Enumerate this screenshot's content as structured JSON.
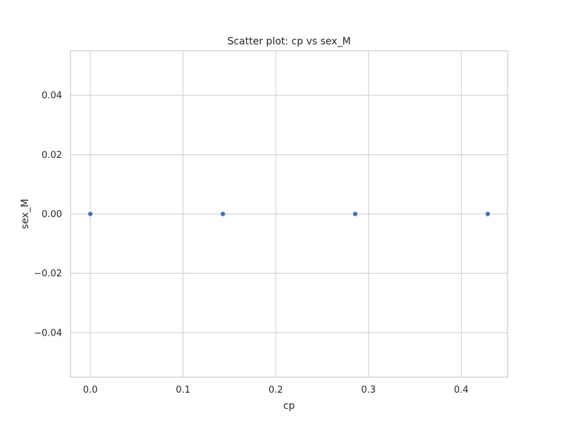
{
  "chart_data": {
    "type": "scatter",
    "title": "Scatter plot: cp vs sex_M",
    "xlabel": "cp",
    "ylabel": "sex_M",
    "xlim": [
      -0.0214,
      0.45
    ],
    "ylim": [
      -0.055,
      0.055
    ],
    "x_ticks": [
      0.0,
      0.1,
      0.2,
      0.3,
      0.4
    ],
    "x_tick_labels": [
      "0.0",
      "0.1",
      "0.2",
      "0.3",
      "0.4"
    ],
    "y_ticks": [
      -0.04,
      -0.02,
      0.0,
      0.02,
      0.04
    ],
    "y_tick_labels": [
      "−0.04",
      "−0.02",
      "0.00",
      "0.02",
      "0.04"
    ],
    "grid": true,
    "legend": "none",
    "series": [
      {
        "x": [
          0.0,
          0.1429,
          0.2857,
          0.4286
        ],
        "y": [
          0.0,
          0.0,
          0.0,
          0.0
        ],
        "color": "#4c72b0"
      }
    ],
    "colors": {
      "grid": "#cccccc",
      "frame": "#cccccc",
      "text": "#262626",
      "point": "#4c72b0"
    }
  }
}
